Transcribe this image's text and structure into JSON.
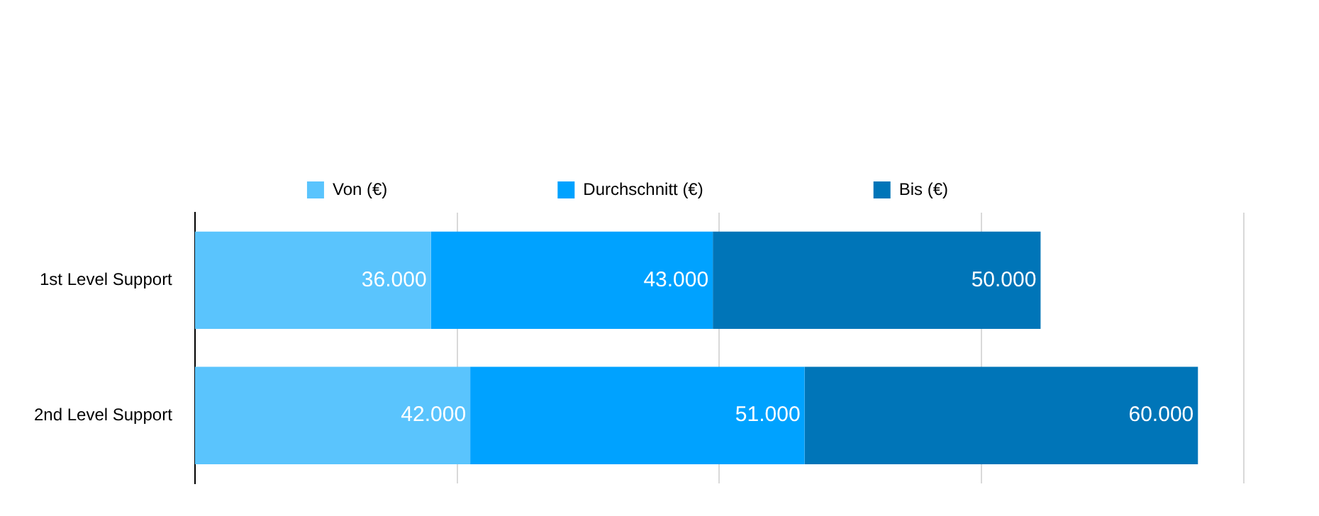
{
  "chart_data": {
    "type": "bar",
    "orientation": "horizontal",
    "stacked": true,
    "categories": [
      "1st Level Support",
      "2nd Level Support"
    ],
    "series": [
      {
        "name": "Von (€)",
        "color": "#5ac4fd",
        "values": [
          36000,
          42000
        ],
        "value_labels": [
          "36.000",
          "42.000"
        ]
      },
      {
        "name": "Durchschnitt (€)",
        "color": "#00a2ff",
        "values": [
          43000,
          51000
        ],
        "value_labels": [
          "43.000",
          "51.000"
        ]
      },
      {
        "name": "Bis (€)",
        "color": "#0075b8",
        "values": [
          50000,
          60000
        ],
        "value_labels": [
          "50.000",
          "60.000"
        ]
      }
    ],
    "xlim": [
      0,
      160000
    ],
    "xticks": [
      {
        "value": 40000,
        "label": null
      },
      {
        "value": 80000,
        "label": null
      },
      {
        "value": 120000,
        "label": null
      },
      {
        "value": 160000,
        "label": null
      }
    ],
    "grid": "x",
    "legend": "top",
    "tick_labels": "y"
  }
}
